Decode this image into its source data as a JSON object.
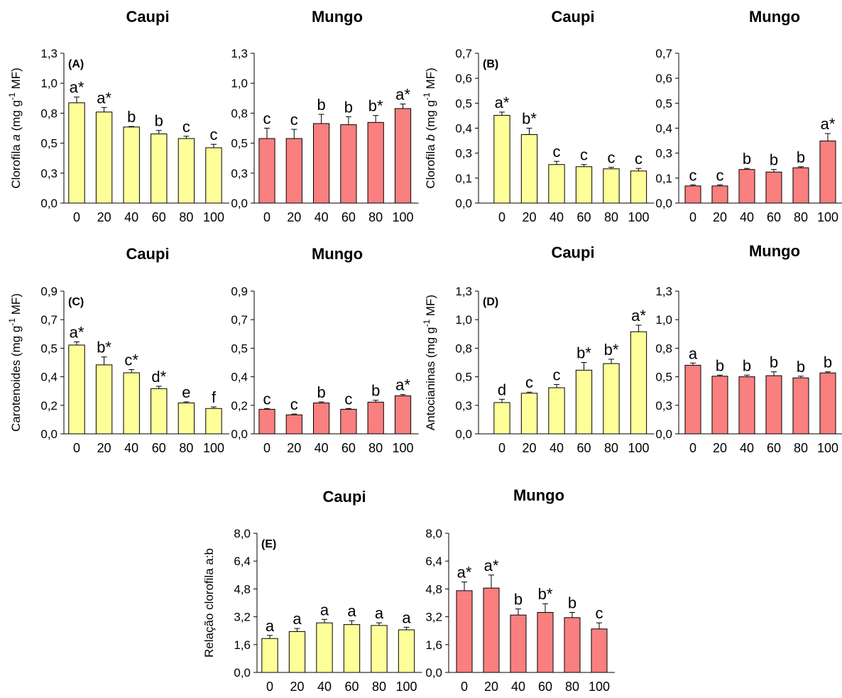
{
  "colors": {
    "caupi": "#ffff99",
    "mungo": "#fa7f7f",
    "border": "#000000"
  },
  "chart_data": [
    {
      "type": "bar",
      "panel_label": "(A)",
      "title": "Caupi",
      "ylabel_pre": "Clorofila ",
      "ylabel_ital": "a",
      "ylabel_mid": " (mg g",
      "ylabel_sup": "-1",
      "ylabel_post": " MF)",
      "categories": [
        "0",
        "20",
        "40",
        "60",
        "80",
        "100"
      ],
      "values": [
        0.87,
        0.79,
        0.66,
        0.6,
        0.56,
        0.48
      ],
      "errors": [
        0.05,
        0.04,
        0.005,
        0.03,
        0.02,
        0.03
      ],
      "letters": [
        "a*",
        "a*",
        "b",
        "b",
        "c",
        "c"
      ],
      "ylim": [
        0,
        1.3
      ],
      "yticks": [
        "0,0",
        "0,3",
        "0,5",
        "0,8",
        "1,0",
        "1,3"
      ]
    },
    {
      "type": "bar",
      "title": "Mungo",
      "categories": [
        "0",
        "20",
        "40",
        "60",
        "80",
        "100"
      ],
      "values": [
        0.56,
        0.56,
        0.69,
        0.68,
        0.7,
        0.82
      ],
      "errors": [
        0.09,
        0.08,
        0.08,
        0.07,
        0.06,
        0.04
      ],
      "letters": [
        "c",
        "c",
        "b",
        "b",
        "b*",
        "a*"
      ],
      "ylim": [
        0,
        1.3
      ],
      "yticks": [
        "0,0",
        "0,3",
        "0,5",
        "0,8",
        "1,0",
        "1,3"
      ]
    },
    {
      "type": "bar",
      "panel_label": "(B)",
      "title": "Caupi",
      "ylabel_pre": "Clorofila ",
      "ylabel_ital": "b",
      "ylabel_mid": " (mg g",
      "ylabel_sup": "-1",
      "ylabel_post": " MF)",
      "categories": [
        "0",
        "20",
        "40",
        "60",
        "80",
        "100"
      ],
      "values": [
        0.41,
        0.32,
        0.18,
        0.17,
        0.16,
        0.15
      ],
      "errors": [
        0.015,
        0.03,
        0.015,
        0.01,
        0.007,
        0.012
      ],
      "letters": [
        "a*",
        "b*",
        "c",
        "c",
        "c",
        "c"
      ],
      "ylim": [
        0,
        0.7
      ],
      "yticks": [
        "0,0",
        "0,1",
        "0,3",
        "0,4",
        "0,5",
        "0,6",
        "0,7"
      ]
    },
    {
      "type": "bar",
      "title": "Mungo",
      "categories": [
        "0",
        "20",
        "40",
        "60",
        "80",
        "100"
      ],
      "values": [
        0.08,
        0.08,
        0.157,
        0.145,
        0.165,
        0.29
      ],
      "errors": [
        0.005,
        0.005,
        0.005,
        0.012,
        0.005,
        0.035
      ],
      "letters": [
        "c",
        "c",
        "b",
        "b",
        "b",
        "a*"
      ],
      "ylim": [
        0,
        0.7
      ],
      "yticks": [
        "0,0",
        "0,1",
        "0,3",
        "0,4",
        "0,5",
        "0,6",
        "0,7"
      ]
    },
    {
      "type": "bar",
      "panel_label": "(C)",
      "title": "Caupi",
      "ylabel_pre": "Carotenoides (mg g",
      "ylabel_sup": "-1",
      "ylabel_post": " MF)",
      "categories": [
        "0",
        "20",
        "40",
        "60",
        "80",
        "100"
      ],
      "values": [
        0.56,
        0.435,
        0.385,
        0.285,
        0.195,
        0.16
      ],
      "errors": [
        0.02,
        0.05,
        0.02,
        0.015,
        0.007,
        0.01
      ],
      "letters": [
        "a*",
        "b*",
        "c*",
        "d*",
        "e",
        "f"
      ],
      "ylim": [
        0,
        0.9
      ],
      "yticks": [
        "0,0",
        "0,2",
        "0,4",
        "0,5",
        "0,7",
        "0,9"
      ]
    },
    {
      "type": "bar",
      "title": "Mungo",
      "categories": [
        "0",
        "20",
        "40",
        "60",
        "80",
        "100"
      ],
      "values": [
        0.155,
        0.12,
        0.195,
        0.155,
        0.2,
        0.24
      ],
      "errors": [
        0.005,
        0.005,
        0.007,
        0.005,
        0.012,
        0.008
      ],
      "letters": [
        "c",
        "c",
        "b",
        "c",
        "b",
        "a*"
      ],
      "ylim": [
        0,
        0.9
      ],
      "yticks": [
        "0,0",
        "0,2",
        "0,4",
        "0,5",
        "0,7",
        "0,9"
      ]
    },
    {
      "type": "bar",
      "panel_label": "(D)",
      "title": "Caupi",
      "ylabel_pre": "Antocianinas (mg g",
      "ylabel_sup": "-1",
      "ylabel_post": " MF)",
      "categories": [
        "0",
        "20",
        "40",
        "60",
        "80",
        "100"
      ],
      "values": [
        0.285,
        0.37,
        0.42,
        0.58,
        0.64,
        0.93
      ],
      "errors": [
        0.03,
        0.01,
        0.03,
        0.07,
        0.04,
        0.06
      ],
      "letters": [
        "d",
        "c",
        "c",
        "b*",
        "b*",
        "a*"
      ],
      "ylim": [
        0,
        1.3
      ],
      "yticks": [
        "0,0",
        "0,3",
        "0,5",
        "0,8",
        "1,0",
        "1,3"
      ]
    },
    {
      "type": "bar",
      "title": "Mungo",
      "categories": [
        "0",
        "20",
        "40",
        "60",
        "80",
        "100"
      ],
      "values": [
        0.625,
        0.525,
        0.52,
        0.53,
        0.51,
        0.555
      ],
      "errors": [
        0.02,
        0.01,
        0.015,
        0.035,
        0.015,
        0.01
      ],
      "letters": [
        "a",
        "b",
        "b",
        "b",
        "b",
        "b"
      ],
      "ylim": [
        0,
        1.3
      ],
      "yticks": [
        "0,0",
        "0,3",
        "0,5",
        "0,8",
        "1,0",
        "1,3"
      ]
    },
    {
      "type": "bar",
      "panel_label": "(E)",
      "title": "Caupi",
      "ylabel_pre": "Relação clorofila a:b",
      "categories": [
        "0",
        "20",
        "40",
        "60",
        "80",
        "100"
      ],
      "values": [
        1.95,
        2.35,
        2.85,
        2.75,
        2.7,
        2.45
      ],
      "errors": [
        0.18,
        0.18,
        0.2,
        0.22,
        0.15,
        0.15
      ],
      "letters": [
        "a",
        "a",
        "a",
        "a",
        "a",
        "a"
      ],
      "ylim": [
        0,
        8
      ],
      "yticks": [
        "0,0",
        "1,6",
        "3,2",
        "4,8",
        "6,4",
        "8,0"
      ]
    },
    {
      "type": "bar",
      "title": "Mungo",
      "categories": [
        "0",
        "20",
        "40",
        "60",
        "80",
        "100"
      ],
      "values": [
        4.7,
        4.85,
        3.3,
        3.45,
        3.15,
        2.5
      ],
      "errors": [
        0.5,
        0.75,
        0.35,
        0.5,
        0.3,
        0.35
      ],
      "letters": [
        "a*",
        "a*",
        "b",
        "b*",
        "b",
        "c"
      ],
      "ylim": [
        0,
        8
      ],
      "yticks": [
        "0,0",
        "1,6",
        "3,2",
        "4,8",
        "6,4",
        "8,0"
      ]
    }
  ]
}
